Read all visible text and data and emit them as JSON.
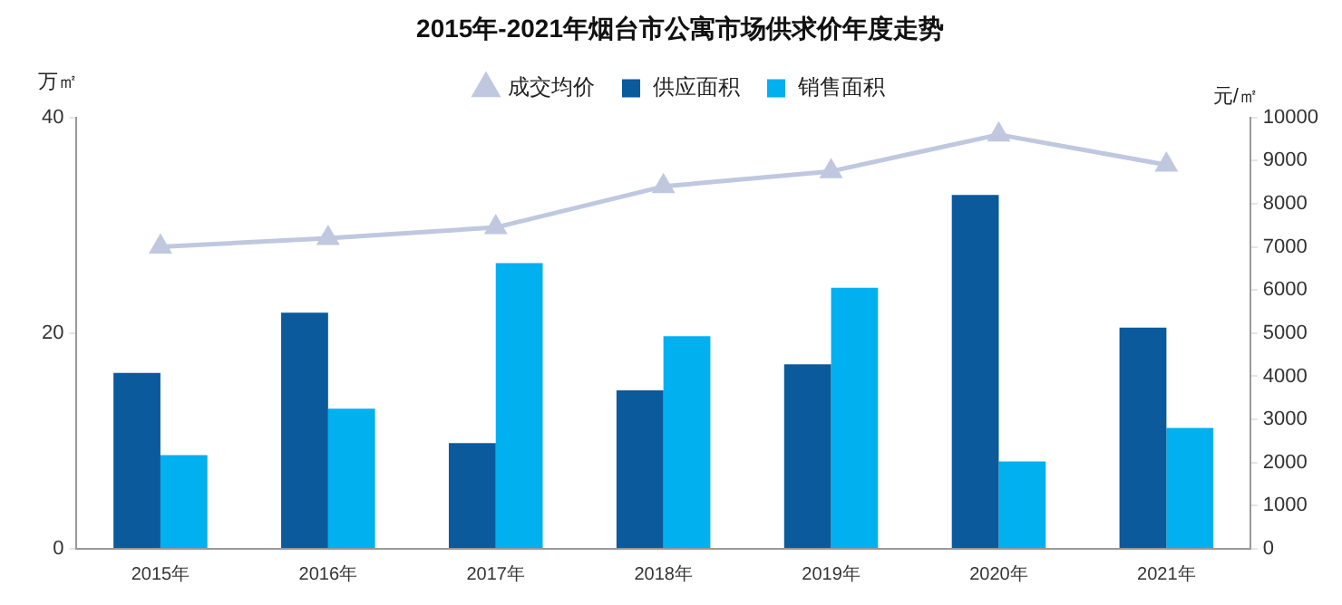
{
  "chart_data": {
    "type": "bar",
    "title": "2015年-2021年烟台市公寓市场供求价年度走势",
    "ylabel": "万㎡",
    "y2label": "元/㎡",
    "categories": [
      "2015年",
      "2016年",
      "2017年",
      "2018年",
      "2019年",
      "2020年",
      "2021年"
    ],
    "series": [
      {
        "name": "供应面积",
        "color": "#0a5a9c",
        "values": [
          16.3,
          21.9,
          9.8,
          14.7,
          17.1,
          32.8,
          20.5
        ]
      },
      {
        "name": "销售面积",
        "color": "#00b0ef",
        "values": [
          8.7,
          13.0,
          26.5,
          19.7,
          24.2,
          8.1,
          11.2
        ]
      },
      {
        "name": "成交均价",
        "type": "line",
        "axis": "y2",
        "color": "#c0c8e0",
        "marker": "triangle",
        "values": [
          7000,
          7200,
          7450,
          8400,
          8750,
          9600,
          8900
        ]
      }
    ],
    "ylim": [
      0,
      40
    ],
    "yticks": [
      0,
      20,
      40
    ],
    "y2lim": [
      0,
      10000
    ],
    "y2ticks": [
      0,
      1000,
      2000,
      3000,
      4000,
      5000,
      6000,
      7000,
      8000,
      9000,
      10000
    ],
    "grid": false,
    "legend": "top"
  }
}
